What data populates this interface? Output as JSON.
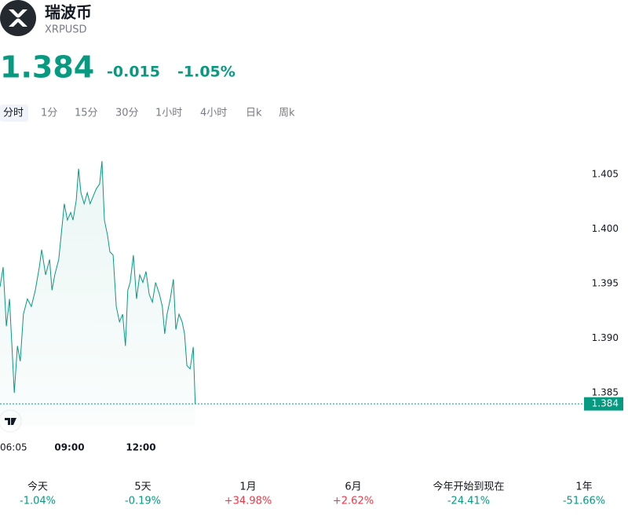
{
  "header": {
    "title": "瑞波币",
    "symbol": "XRPUSD",
    "price": "1.384",
    "change": "-0.015",
    "change_percent": "-1.05%"
  },
  "tabs": [
    "分时",
    "1分",
    "15分",
    "30分",
    "1小时",
    "4小时",
    "日k",
    "周k"
  ],
  "chart_data": {
    "type": "line",
    "color": "#089981",
    "x": [
      365,
      373,
      381,
      389,
      395,
      401,
      409,
      416,
      424,
      434,
      444,
      454,
      464,
      470,
      480,
      490,
      496,
      503,
      513,
      519,
      527,
      535,
      543,
      549,
      557,
      563,
      569,
      577,
      585,
      592,
      600,
      608,
      616,
      622,
      628,
      636,
      642,
      650,
      658,
      666,
      674,
      681,
      687,
      693,
      701,
      709,
      717,
      725,
      733,
      741,
      749,
      757,
      767,
      774,
      780,
      786,
      794,
      802,
      808,
      816,
      824,
      830,
      836,
      844,
      852,
      857
    ],
    "values": [
      1.3947,
      1.3965,
      1.3911,
      1.3936,
      1.3893,
      1.385,
      1.3893,
      1.3879,
      1.3922,
      1.3936,
      1.3929,
      1.3944,
      1.3965,
      1.3981,
      1.3958,
      1.3972,
      1.3944,
      1.3958,
      1.3972,
      1.3994,
      1.4023,
      1.4008,
      1.4015,
      1.4008,
      1.4026,
      1.4055,
      1.4033,
      1.4023,
      1.4033,
      1.4023,
      1.403,
      1.4037,
      1.4041,
      1.4062,
      1.4008,
      1.3994,
      1.3979,
      1.3976,
      1.3929,
      1.3915,
      1.3922,
      1.3893,
      1.3944,
      1.3951,
      1.3976,
      1.3936,
      1.3958,
      1.3951,
      1.3961,
      1.394,
      1.3933,
      1.3951,
      1.394,
      1.3929,
      1.3904,
      1.3922,
      1.3936,
      1.3954,
      1.3908,
      1.3922,
      1.3915,
      1.3904,
      1.3875,
      1.3872,
      1.3892,
      1.384
    ],
    "xlim": [
      365,
      1805
    ],
    "xticks": [
      {
        "value": 365,
        "label": "06:05"
      },
      {
        "value": 540,
        "label": "09:00"
      },
      {
        "value": 720,
        "label": "12:00"
      }
    ],
    "ylim": [
      1.382,
      1.408
    ],
    "yticks": [
      1.385,
      {
        "value": 1.39,
        "label": "1.390"
      },
      1.395,
      {
        "value": 1.4,
        "label": "1.400"
      },
      1.405
    ]
  },
  "performance": [
    {
      "label": "今天",
      "value": "-1.04%"
    },
    {
      "label": "5天",
      "value": "-0.19%"
    },
    {
      "label": "1月",
      "value": "+34.98%"
    },
    {
      "label": "6月",
      "value": "+2.62%"
    },
    {
      "label": "今年开始到现在",
      "value": "-24.41%"
    },
    {
      "label": "1年",
      "value": "-51.66%"
    }
  ]
}
